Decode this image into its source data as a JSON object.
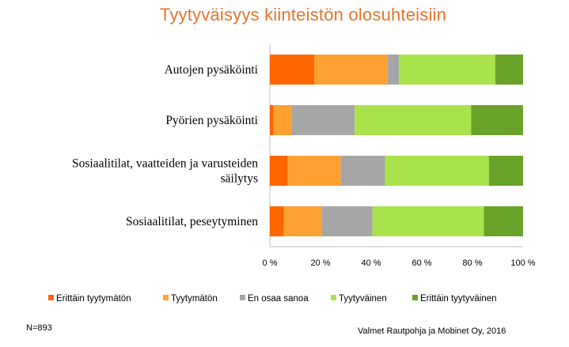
{
  "chart_data": {
    "type": "bar",
    "orientation": "horizontal",
    "stacked": true,
    "title": "Tyytyväisyys kiinteistön olosuhteisiin",
    "categories": [
      "Autojen pysäköinti",
      "Pyörien pysäköinti",
      "Sosiaalitilat, vaatteiden ja varusteiden säilytys",
      "Sosiaalitilat, peseytyminen"
    ],
    "category_lines": [
      [
        "Autojen pysäköinti"
      ],
      [
        "Pyörien pysäköinti"
      ],
      [
        "Sosiaalitilat, vaatteiden ja varusteiden",
        "säilytys"
      ],
      [
        "Sosiaalitilat, peseytyminen"
      ]
    ],
    "series": [
      {
        "name": "Erittäin tyytymätön",
        "color": "#ff6600",
        "values": [
          17.5,
          1.5,
          7,
          5.5
        ]
      },
      {
        "name": "Tyytymätön",
        "color": "#ffa033",
        "values": [
          29,
          7,
          21,
          15
        ]
      },
      {
        "name": "En osaa sanoa",
        "color": "#a6a6a6",
        "values": [
          4.5,
          25,
          17.5,
          20
        ]
      },
      {
        "name": "Tyytyväinen",
        "color": "#a9e34b",
        "values": [
          38,
          46,
          41,
          44
        ]
      },
      {
        "name": "Erittäin tyytyväinen",
        "color": "#6aa329",
        "values": [
          11,
          20.5,
          13.5,
          15.5
        ]
      }
    ],
    "xlim": [
      0,
      100
    ],
    "x_ticks": [
      "0 %",
      "20 %",
      "40 %",
      "60 %",
      "80 %",
      "100 %"
    ],
    "legend_position": "bottom",
    "grid": false
  },
  "footnote_left": "N=893",
  "footnote_right": "Valmet Rautpohja ja Mobinet Oy, 2016"
}
